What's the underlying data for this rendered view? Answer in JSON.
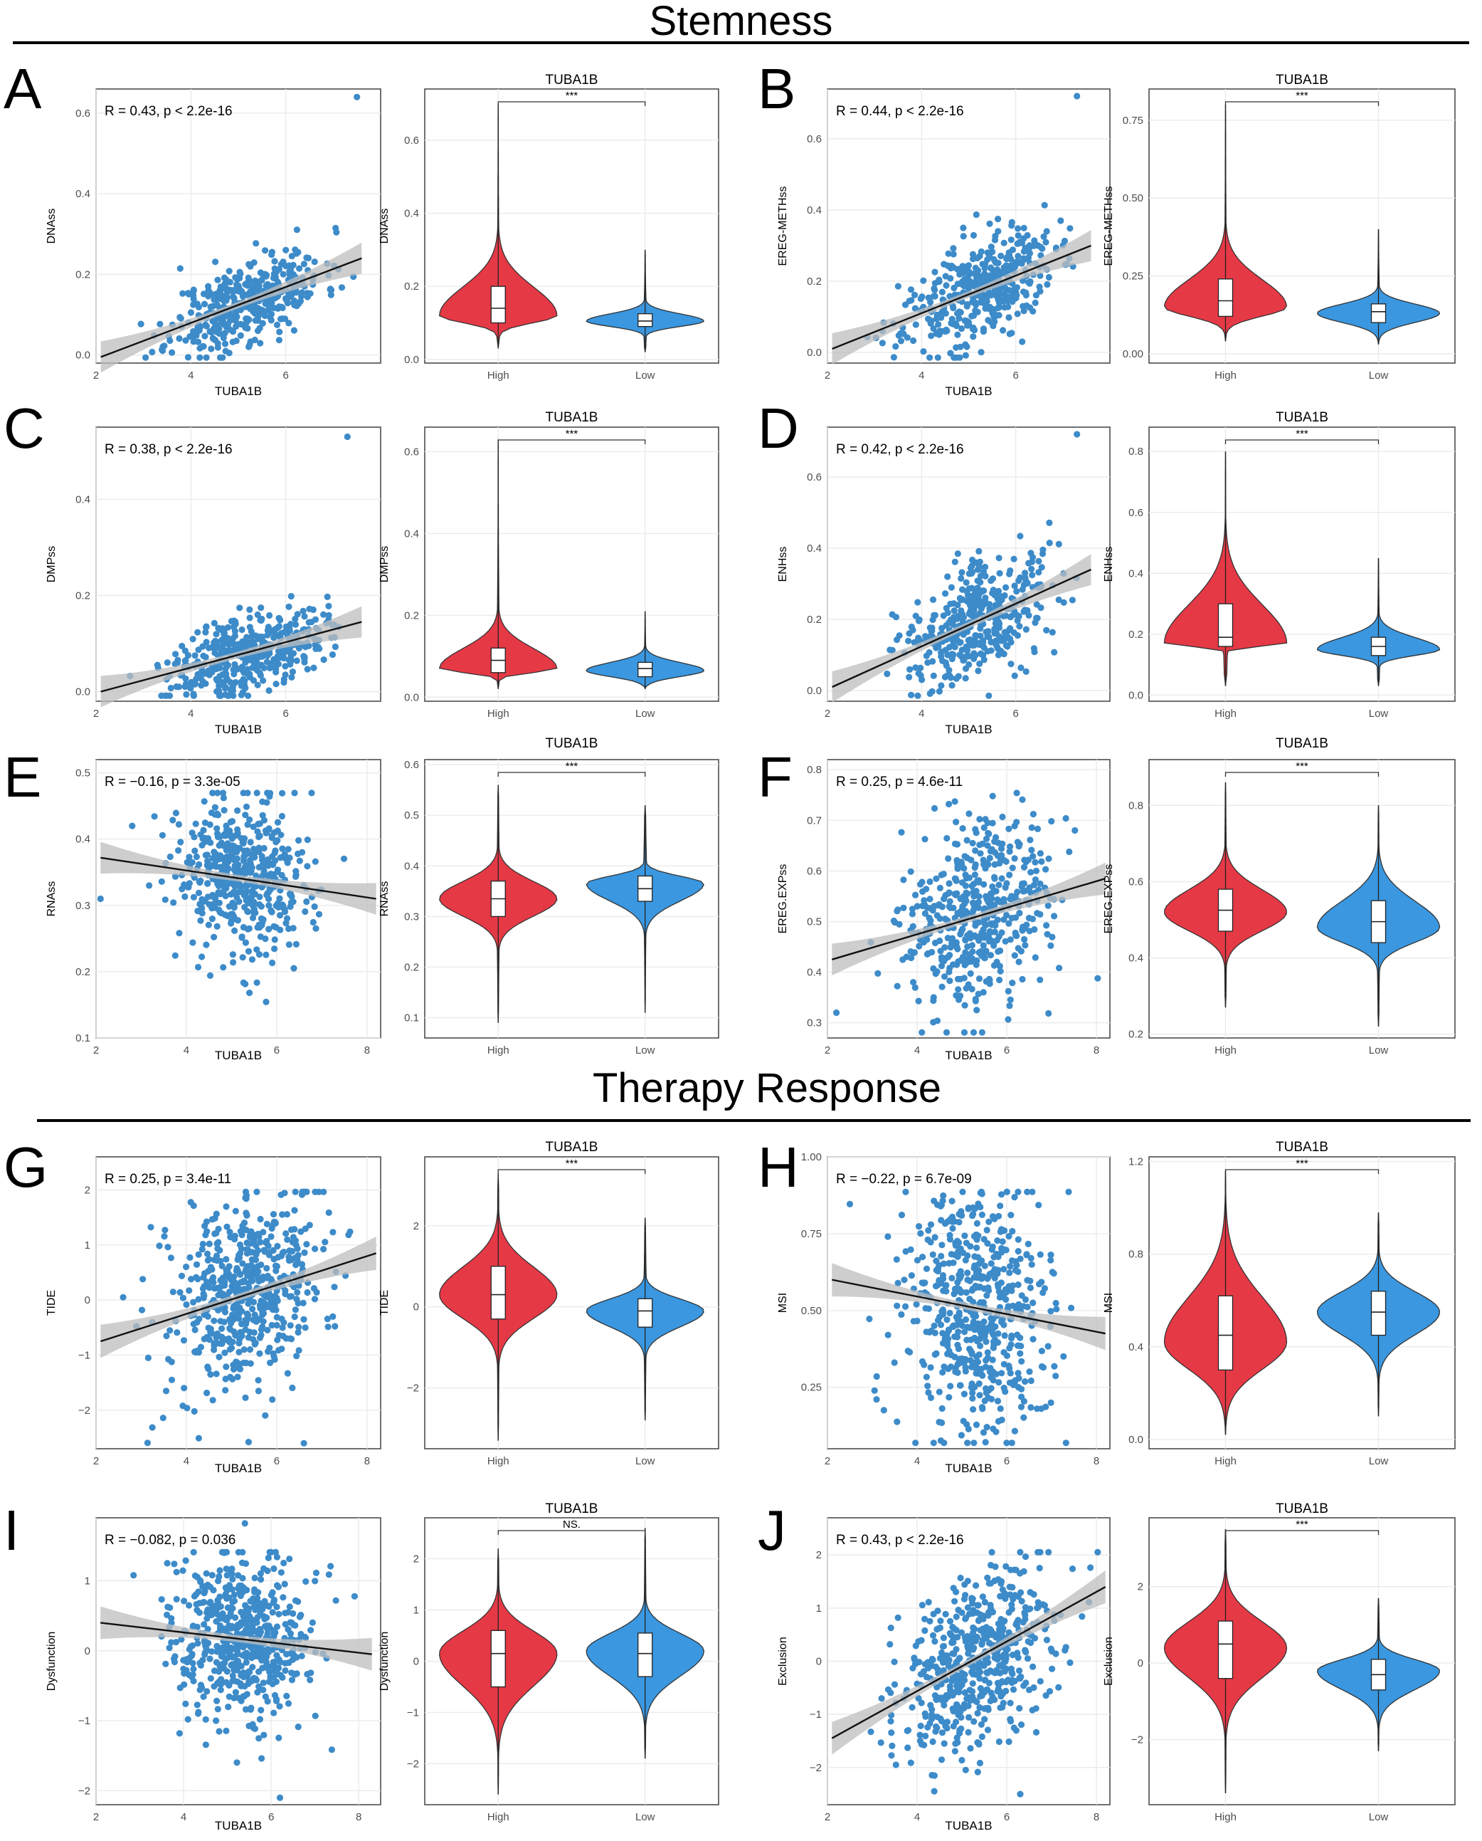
{
  "sections": {
    "stemness": "Stemness",
    "therapy": "Therapy Response"
  },
  "colors": {
    "high": "#E63946",
    "low": "#3A97E0",
    "point": "#3D8BC9",
    "line": "#111111",
    "band": "#BDBDBD",
    "frame": "#4D4D4D",
    "grid": "#EBEBEB"
  },
  "chart_data": [
    {
      "panel": "A",
      "type": "scatter",
      "ylabel": "DNAss",
      "xlabel": "TUBA1B",
      "annotation": "R = 0.43, p < 2.2e-16",
      "xlim": [
        2,
        8
      ],
      "ylim": [
        -0.02,
        0.66
      ],
      "xticks": [
        2,
        4,
        6
      ],
      "yticks": [
        0.0,
        0.2,
        0.4,
        0.6
      ],
      "fit": {
        "x": [
          2.1,
          7.6
        ],
        "y": [
          -0.005,
          0.24
        ]
      },
      "seed": 11,
      "n": 420,
      "xmean": 5.2,
      "xsd": 0.8,
      "ymean": 0.13,
      "ysd": 0.05,
      "outliers": [
        [
          7.5,
          0.64
        ]
      ]
    },
    {
      "panel": "A",
      "type": "violin",
      "title": "TUBA1B",
      "ylabel": "DNAss",
      "sig": "***",
      "categories": [
        "High",
        "Low"
      ],
      "ylim": [
        -0.01,
        0.74
      ],
      "yticks": [
        0.0,
        0.2,
        0.4,
        0.6
      ],
      "groups": [
        {
          "name": "High",
          "min": 0.03,
          "q1": 0.1,
          "median": 0.14,
          "q3": 0.2,
          "max": 0.7,
          "mode": 0.12
        },
        {
          "name": "Low",
          "min": 0.02,
          "q1": 0.09,
          "median": 0.105,
          "q3": 0.125,
          "max": 0.3,
          "mode": 0.105
        }
      ]
    },
    {
      "panel": "B",
      "type": "scatter",
      "ylabel": "EREG-METHss",
      "xlabel": "TUBA1B",
      "annotation": "R = 0.44, p < 2.2e-16",
      "xlim": [
        2,
        8
      ],
      "ylim": [
        -0.03,
        0.74
      ],
      "xticks": [
        2,
        4,
        6
      ],
      "yticks": [
        0.0,
        0.2,
        0.4,
        0.6
      ],
      "fit": {
        "x": [
          2.1,
          7.6
        ],
        "y": [
          0.01,
          0.3
        ]
      },
      "seed": 23,
      "n": 420,
      "xmean": 5.2,
      "xsd": 0.8,
      "ymean": 0.16,
      "ysd": 0.07,
      "outliers": [
        [
          7.3,
          0.72
        ]
      ]
    },
    {
      "panel": "B",
      "type": "violin",
      "title": "TUBA1B",
      "ylabel": "EREG-METHss",
      "sig": "***",
      "categories": [
        "High",
        "Low"
      ],
      "ylim": [
        -0.03,
        0.85
      ],
      "yticks": [
        0.0,
        0.25,
        0.5,
        0.75
      ],
      "yticklabels": [
        "0.00",
        "0.25",
        "0.50",
        "0.75"
      ],
      "groups": [
        {
          "name": "High",
          "min": 0.04,
          "q1": 0.12,
          "median": 0.17,
          "q3": 0.24,
          "max": 0.8,
          "mode": 0.15
        },
        {
          "name": "Low",
          "min": 0.03,
          "q1": 0.1,
          "median": 0.135,
          "q3": 0.16,
          "max": 0.4,
          "mode": 0.13
        }
      ]
    },
    {
      "panel": "C",
      "type": "scatter",
      "ylabel": "DMPss",
      "xlabel": "TUBA1B",
      "annotation": "R = 0.38, p < 2.2e-16",
      "xlim": [
        2,
        8
      ],
      "ylim": [
        -0.02,
        0.55
      ],
      "xticks": [
        2,
        4,
        6
      ],
      "yticks": [
        0.0,
        0.2,
        0.4
      ],
      "fit": {
        "x": [
          2.1,
          7.6
        ],
        "y": [
          0.0,
          0.145
        ]
      },
      "seed": 37,
      "n": 420,
      "xmean": 5.2,
      "xsd": 0.8,
      "ymean": 0.08,
      "ysd": 0.04,
      "outliers": [
        [
          7.3,
          0.53
        ]
      ]
    },
    {
      "panel": "C",
      "type": "violin",
      "title": "TUBA1B",
      "ylabel": "DMPss",
      "sig": "***",
      "categories": [
        "High",
        "Low"
      ],
      "ylim": [
        -0.01,
        0.66
      ],
      "yticks": [
        0.0,
        0.2,
        0.4,
        0.6
      ],
      "groups": [
        {
          "name": "High",
          "min": 0.02,
          "q1": 0.06,
          "median": 0.09,
          "q3": 0.12,
          "max": 0.63,
          "mode": 0.07
        },
        {
          "name": "Low",
          "min": 0.02,
          "q1": 0.05,
          "median": 0.07,
          "q3": 0.085,
          "max": 0.21,
          "mode": 0.065
        }
      ]
    },
    {
      "panel": "D",
      "type": "scatter",
      "ylabel": "ENHss",
      "xlabel": "TUBA1B",
      "annotation": "R = 0.42, p < 2.2e-16",
      "xlim": [
        2,
        8
      ],
      "ylim": [
        -0.03,
        0.74
      ],
      "xticks": [
        2,
        4,
        6
      ],
      "yticks": [
        0.0,
        0.2,
        0.4,
        0.6
      ],
      "fit": {
        "x": [
          2.1,
          7.6
        ],
        "y": [
          0.01,
          0.34
        ]
      },
      "seed": 41,
      "n": 420,
      "xmean": 5.2,
      "xsd": 0.8,
      "ymean": 0.2,
      "ysd": 0.08,
      "outliers": [
        [
          7.3,
          0.72
        ]
      ]
    },
    {
      "panel": "D",
      "type": "violin",
      "title": "TUBA1B",
      "ylabel": "ENHss",
      "sig": "***",
      "categories": [
        "High",
        "Low"
      ],
      "ylim": [
        -0.02,
        0.88
      ],
      "yticks": [
        0.0,
        0.2,
        0.4,
        0.6,
        0.8
      ],
      "groups": [
        {
          "name": "High",
          "min": 0.03,
          "q1": 0.16,
          "median": 0.19,
          "q3": 0.3,
          "max": 0.8,
          "mode": 0.17
        },
        {
          "name": "Low",
          "min": 0.03,
          "q1": 0.13,
          "median": 0.16,
          "q3": 0.19,
          "max": 0.45,
          "mode": 0.15
        }
      ]
    },
    {
      "panel": "E",
      "type": "scatter",
      "ylabel": "RNAss",
      "xlabel": "TUBA1B",
      "annotation": "R = −0.16, p = 3.3e-05",
      "xlim": [
        2,
        8.3
      ],
      "ylim": [
        0.1,
        0.52
      ],
      "xticks": [
        2,
        4,
        6,
        8
      ],
      "yticks": [
        0.1,
        0.2,
        0.3,
        0.4,
        0.5
      ],
      "fit": {
        "x": [
          2.1,
          8.2
        ],
        "y": [
          0.372,
          0.31
        ]
      },
      "seed": 53,
      "n": 480,
      "xmean": 5.3,
      "xsd": 0.8,
      "ymean": 0.34,
      "ysd": 0.06,
      "outliers": [
        [
          2.1,
          0.31
        ],
        [
          2.8,
          0.42
        ]
      ]
    },
    {
      "panel": "E",
      "type": "violin",
      "title": "TUBA1B",
      "ylabel": "RNAss",
      "sig": "***",
      "categories": [
        "High",
        "Low"
      ],
      "ylim": [
        0.06,
        0.61
      ],
      "yticks": [
        0.1,
        0.2,
        0.3,
        0.4,
        0.5,
        0.6
      ],
      "groups": [
        {
          "name": "High",
          "min": 0.09,
          "q1": 0.3,
          "median": 0.335,
          "q3": 0.37,
          "max": 0.56,
          "mode": 0.335
        },
        {
          "name": "Low",
          "min": 0.11,
          "q1": 0.33,
          "median": 0.355,
          "q3": 0.38,
          "max": 0.52,
          "mode": 0.365
        }
      ]
    },
    {
      "panel": "F",
      "type": "scatter",
      "ylabel": "EREG.EXPss",
      "xlabel": "TUBA1B",
      "annotation": "R = 0.25, p = 4.6e-11",
      "xlim": [
        2,
        8.3
      ],
      "ylim": [
        0.27,
        0.82
      ],
      "xticks": [
        2,
        4,
        6,
        8
      ],
      "yticks": [
        0.3,
        0.4,
        0.5,
        0.6,
        0.7,
        0.8
      ],
      "fit": {
        "x": [
          2.1,
          8.2
        ],
        "y": [
          0.425,
          0.585
        ]
      },
      "seed": 67,
      "n": 480,
      "xmean": 5.3,
      "xsd": 0.8,
      "ymean": 0.49,
      "ysd": 0.09,
      "outliers": [
        [
          2.2,
          0.32
        ]
      ]
    },
    {
      "panel": "F",
      "type": "violin",
      "title": "TUBA1B",
      "ylabel": "EREG.EXPss",
      "sig": "***",
      "categories": [
        "High",
        "Low"
      ],
      "ylim": [
        0.19,
        0.92
      ],
      "yticks": [
        0.2,
        0.4,
        0.6,
        0.8
      ],
      "groups": [
        {
          "name": "High",
          "min": 0.27,
          "q1": 0.47,
          "median": 0.525,
          "q3": 0.58,
          "max": 0.86,
          "mode": 0.52
        },
        {
          "name": "Low",
          "min": 0.22,
          "q1": 0.44,
          "median": 0.495,
          "q3": 0.55,
          "max": 0.8,
          "mode": 0.48
        }
      ]
    },
    {
      "panel": "G",
      "type": "scatter",
      "ylabel": "TIDE",
      "xlabel": "TUBA1B",
      "annotation": "R = 0.25, p = 3.4e-11",
      "xlim": [
        2,
        8.3
      ],
      "ylim": [
        -2.7,
        2.6
      ],
      "xticks": [
        2,
        4,
        6,
        8
      ],
      "yticks": [
        -2,
        -1,
        0,
        1,
        2
      ],
      "fit": {
        "x": [
          2.1,
          8.2
        ],
        "y": [
          -0.75,
          0.85
        ]
      },
      "seed": 71,
      "n": 560,
      "xmean": 5.3,
      "xsd": 0.85,
      "ymean": 0.05,
      "ysd": 0.85,
      "outliers": [
        [
          6.6,
          -2.6
        ],
        [
          2.6,
          0.05
        ]
      ]
    },
    {
      "panel": "G",
      "type": "violin",
      "title": "TUBA1B",
      "ylabel": "TIDE",
      "sig": "***",
      "categories": [
        "High",
        "Low"
      ],
      "ylim": [
        -3.5,
        3.7
      ],
      "yticks": [
        -2,
        0,
        2
      ],
      "groups": [
        {
          "name": "High",
          "min": -3.3,
          "q1": -0.3,
          "median": 0.3,
          "q3": 1.0,
          "max": 3.3,
          "mode": 0.3
        },
        {
          "name": "Low",
          "min": -2.8,
          "q1": -0.5,
          "median": -0.1,
          "q3": 0.2,
          "max": 2.2,
          "mode": -0.1
        }
      ]
    },
    {
      "panel": "H",
      "type": "scatter",
      "ylabel": "MSI",
      "xlabel": "TUBA1B",
      "annotation": "R = −0.22, p = 6.7e-09",
      "xlim": [
        2,
        8.3
      ],
      "ylim": [
        0.05,
        1.0
      ],
      "xticks": [
        2,
        4,
        6,
        8
      ],
      "yticks": [
        0.25,
        0.5,
        0.75,
        1.0
      ],
      "yticklabels": [
        "0.25",
        "0.50",
        "0.75",
        "1.00"
      ],
      "fit": {
        "x": [
          2.1,
          8.2
        ],
        "y": [
          0.6,
          0.425
        ]
      },
      "seed": 83,
      "n": 560,
      "xmean": 5.3,
      "xsd": 0.85,
      "ymean": 0.5,
      "ysd": 0.2,
      "outliers": []
    },
    {
      "panel": "H",
      "type": "violin",
      "title": "TUBA1B",
      "ylabel": "MSI",
      "sig": "***",
      "categories": [
        "High",
        "Low"
      ],
      "ylim": [
        -0.04,
        1.22
      ],
      "yticks": [
        0.0,
        0.4,
        0.8,
        1.2
      ],
      "groups": [
        {
          "name": "High",
          "min": 0.02,
          "q1": 0.3,
          "median": 0.45,
          "q3": 0.62,
          "max": 1.16,
          "mode": 0.42
        },
        {
          "name": "Low",
          "min": 0.1,
          "q1": 0.45,
          "median": 0.55,
          "q3": 0.64,
          "max": 0.98,
          "mode": 0.55
        }
      ]
    },
    {
      "panel": "I",
      "type": "scatter",
      "ylabel": "Dysfunction",
      "xlabel": "TUBA1B",
      "annotation": "R = −0.082, p = 0.036",
      "xlim": [
        2,
        8.5
      ],
      "ylim": [
        -2.2,
        1.9
      ],
      "xticks": [
        2,
        4,
        6,
        8
      ],
      "yticks": [
        -2,
        -1,
        0,
        1
      ],
      "fit": {
        "x": [
          2.1,
          8.3
        ],
        "y": [
          0.4,
          -0.05
        ]
      },
      "seed": 97,
      "n": 560,
      "xmean": 5.3,
      "xsd": 0.85,
      "ymean": 0.2,
      "ysd": 0.6,
      "outliers": [
        [
          6.2,
          -2.1
        ],
        [
          5.4,
          1.82
        ]
      ]
    },
    {
      "panel": "I",
      "type": "violin",
      "title": "TUBA1B",
      "ylabel": "Dysfunction",
      "sig": "NS.",
      "categories": [
        "High",
        "Low"
      ],
      "ylim": [
        -2.8,
        2.8
      ],
      "yticks": [
        -2,
        -1,
        0,
        1,
        2
      ],
      "groups": [
        {
          "name": "High",
          "min": -2.6,
          "q1": -0.5,
          "median": 0.15,
          "q3": 0.6,
          "max": 2.2,
          "mode": 0.15
        },
        {
          "name": "Low",
          "min": -1.9,
          "q1": -0.3,
          "median": 0.15,
          "q3": 0.55,
          "max": 2.6,
          "mode": 0.2
        }
      ]
    },
    {
      "panel": "J",
      "type": "scatter",
      "ylabel": "Exclusion",
      "xlabel": "TUBA1B",
      "annotation": "R = 0.43, p < 2.2e-16",
      "xlim": [
        2,
        8.3
      ],
      "ylim": [
        -2.7,
        2.7
      ],
      "xticks": [
        2,
        4,
        6,
        8
      ],
      "yticks": [
        -2,
        -1,
        0,
        1,
        2
      ],
      "fit": {
        "x": [
          2.1,
          8.2
        ],
        "y": [
          -1.45,
          1.4
        ]
      },
      "seed": 101,
      "n": 560,
      "xmean": 5.3,
      "xsd": 0.85,
      "ymean": 0.0,
      "ysd": 0.8,
      "outliers": [
        [
          6.3,
          -2.5
        ]
      ]
    },
    {
      "panel": "J",
      "type": "violin",
      "title": "TUBA1B",
      "ylabel": "Exclusion",
      "sig": "***",
      "categories": [
        "High",
        "Low"
      ],
      "ylim": [
        -3.7,
        3.8
      ],
      "yticks": [
        -2,
        0,
        2
      ],
      "groups": [
        {
          "name": "High",
          "min": -3.4,
          "q1": -0.4,
          "median": 0.5,
          "q3": 1.1,
          "max": 3.5,
          "mode": 0.4
        },
        {
          "name": "Low",
          "min": -2.3,
          "q1": -0.7,
          "median": -0.3,
          "q3": 0.1,
          "max": 1.7,
          "mode": -0.2
        }
      ]
    }
  ]
}
